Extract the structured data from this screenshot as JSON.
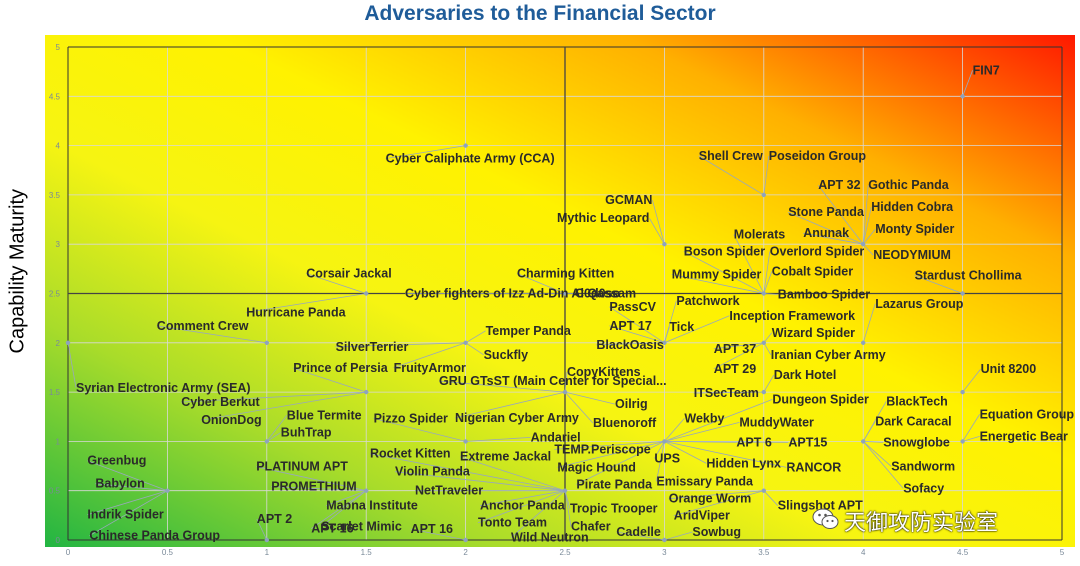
{
  "chart_data": {
    "type": "scatter",
    "title": "Adversaries to the Financial Sector",
    "xlabel": "",
    "ylabel": "Capability Maturity",
    "xlim": [
      0,
      5
    ],
    "ylim": [
      0,
      5
    ],
    "xticks": [
      "0",
      "0.5",
      "1",
      "1.5",
      "2",
      "2.5",
      "3",
      "3.5",
      "4",
      "4.5",
      "5"
    ],
    "yticks": [
      "0",
      "0.5",
      "1",
      "1.5",
      "2",
      "2.5",
      "3",
      "3.5",
      "4",
      "4.5",
      "5"
    ],
    "grid": true,
    "quadrant_lines": {
      "x": 2.5,
      "y": 2.5
    },
    "background": "gradient green (bottom-left) to yellow to red (top-right)",
    "colors": {
      "green": "#2DB83D",
      "yellow": "#FFF200",
      "orange": "#FF9A00",
      "red": "#FF1A00",
      "marker": "#8EA3BD"
    },
    "points": [
      {
        "x": 4.5,
        "y": 4.5,
        "labels": [
          "FIN7"
        ]
      },
      {
        "x": 2.0,
        "y": 4.0,
        "labels": [
          "Cyber Caliphate Army (CCA)"
        ]
      },
      {
        "x": 3.5,
        "y": 3.5,
        "labels": [
          "Shell Crew",
          "Poseidon Group"
        ]
      },
      {
        "x": 4.0,
        "y": 3.0,
        "labels": [
          "APT 32",
          "Gothic Panda",
          "Stone Panda",
          "Hidden Cobra",
          "Anunak",
          "Monty Spider",
          "NEODYMIUM"
        ]
      },
      {
        "x": 3.0,
        "y": 3.0,
        "labels": [
          "GCMAN",
          "Mythic Leopard"
        ]
      },
      {
        "x": 3.5,
        "y": 2.5,
        "labels": [
          "Molerats",
          "Boson Spider",
          "Overlord Spider",
          "Mummy Spider",
          "Cobalt Spider",
          "Bamboo Spider"
        ]
      },
      {
        "x": 4.5,
        "y": 2.5,
        "labels": [
          "Stardust Chollima"
        ]
      },
      {
        "x": 1.5,
        "y": 2.5,
        "labels": [
          "Corsair Jackal",
          "Hurricane Panda"
        ]
      },
      {
        "x": 2.5,
        "y": 2.5,
        "labels": [
          "Charming Kitten",
          "Cyber fighters of Izz Ad-Din Al Qassam",
          "C0d0so"
        ]
      },
      {
        "x": 3.0,
        "y": 2.0,
        "labels": [
          "Patchwork",
          "PassCV",
          "APT 17",
          "Tick",
          "Inception Framework",
          "BlackOasis"
        ]
      },
      {
        "x": 4.0,
        "y": 2.0,
        "labels": [
          "Lazarus Group"
        ]
      },
      {
        "x": 1.0,
        "y": 2.0,
        "labels": [
          "Comment Crew"
        ]
      },
      {
        "x": 0.0,
        "y": 2.0,
        "labels": [
          "Syrian Electronic Army (SEA)"
        ]
      },
      {
        "x": 2.0,
        "y": 2.0,
        "labels": [
          "Temper Panda",
          "SilverTerrier",
          "Suckfly",
          "FruityArmor"
        ]
      },
      {
        "x": 3.5,
        "y": 2.0,
        "labels": [
          "Wizard Spider",
          "APT 37",
          "Iranian Cyber Army",
          "APT 29"
        ]
      },
      {
        "x": 1.5,
        "y": 1.5,
        "labels": [
          "Prince of Persia",
          "Cyber Berkut",
          "OnionDog"
        ]
      },
      {
        "x": 2.5,
        "y": 1.5,
        "labels": [
          "GRU GTsST (Main Center for Special...",
          "CopyKittens",
          "Oilrig",
          "Nigerian Cyber Army",
          "Bluenoroff"
        ]
      },
      {
        "x": 3.5,
        "y": 1.5,
        "labels": [
          "Dark Hotel",
          "ITSecTeam"
        ]
      },
      {
        "x": 4.5,
        "y": 1.5,
        "labels": [
          "Unit 8200"
        ]
      },
      {
        "x": 1.0,
        "y": 1.0,
        "labels": [
          "Blue Termite",
          "BuhTrap"
        ]
      },
      {
        "x": 2.0,
        "y": 1.0,
        "labels": [
          "Pizzo Spider",
          "Andariel"
        ]
      },
      {
        "x": 3.0,
        "y": 1.0,
        "labels": [
          "Wekby",
          "Dungeon Spider",
          "MuddyWater",
          "APT 6",
          "APT15",
          "TEMP.Periscope",
          "UPS",
          "Hidden Lynx",
          "RANCOR",
          "Magic Hound",
          "Emissary Panda",
          "Pirate Panda"
        ]
      },
      {
        "x": 4.0,
        "y": 1.0,
        "labels": [
          "BlackTech",
          "Dark Caracal",
          "Snowglobe",
          "Sandworm",
          "Sofacy"
        ]
      },
      {
        "x": 4.5,
        "y": 1.0,
        "labels": [
          "Equation Group",
          "Energetic Bear"
        ]
      },
      {
        "x": 2.5,
        "y": 0.5,
        "labels": [
          "Rocket Kitten",
          "Extreme Jackal",
          "Violin Panda",
          "NetTraveler",
          "Anchor Panda",
          "Tonto Team",
          "Tropic Trooper",
          "Chafer",
          "Wild Neutron"
        ]
      },
      {
        "x": 0.5,
        "y": 0.5,
        "labels": [
          "Greenbug",
          "Babylon",
          "Indrik Spider",
          "Chinese Panda Group"
        ]
      },
      {
        "x": 1.5,
        "y": 0.5,
        "labels": [
          "PLATINUM APT",
          "PROMETHIUM",
          "Mabna Institute",
          "Scarlet Mimic",
          "APT 16"
        ]
      },
      {
        "x": 3.5,
        "y": 0.5,
        "labels": [
          "Orange Worm",
          "AridViper",
          "Slingshot APT"
        ]
      },
      {
        "x": 3.0,
        "y": 0.0,
        "labels": [
          "Cadelle",
          "Sowbug"
        ]
      },
      {
        "x": 1.0,
        "y": 0.0,
        "labels": [
          "APT 2"
        ]
      },
      {
        "x": 2.0,
        "y": 0.0,
        "labels": [
          "APT 16"
        ]
      }
    ]
  },
  "watermark": {
    "text": "天御攻防实验室",
    "icon": "wechat-icon"
  }
}
